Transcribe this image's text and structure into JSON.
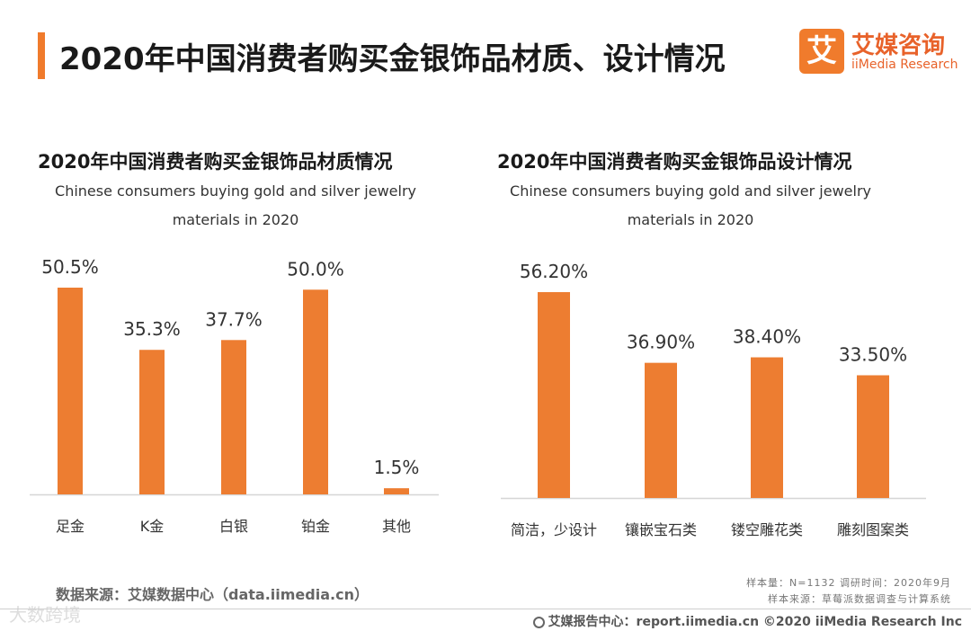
{
  "page": {
    "title": "2020年中国消费者购买金银饰品材质、设计情况"
  },
  "logo": {
    "mark": "艾",
    "name_cn": "艾媒咨询",
    "name_en": "iiMedia Research"
  },
  "chart_data": [
    {
      "type": "bar",
      "title": "2020年中国消费者购买金银饰品材质情况",
      "subtitle_line1": "Chinese consumers buying gold and silver jewelry",
      "subtitle_line2": "materials in 2020",
      "categories": [
        "足金",
        "K金",
        "白银",
        "铂金",
        "其他"
      ],
      "values": [
        50.5,
        35.3,
        37.7,
        50.0,
        1.5
      ],
      "value_labels": [
        "50.5%",
        "35.3%",
        "37.7%",
        "50.0%",
        "1.5%"
      ],
      "unit": "%",
      "ylim": [
        0,
        50.5
      ],
      "color": "#ed7d31"
    },
    {
      "type": "bar",
      "title": "2020年中国消费者购买金银饰品设计情况",
      "subtitle_line1": "Chinese consumers buying gold and silver jewelry",
      "subtitle_line2": "materials in 2020",
      "categories": [
        "简洁，少设计",
        "镶嵌宝石类",
        "镂空雕花类",
        "雕刻图案类"
      ],
      "values": [
        56.2,
        36.9,
        38.4,
        33.5
      ],
      "value_labels": [
        "56.20%",
        "36.90%",
        "38.40%",
        "33.50%"
      ],
      "unit": "%",
      "ylim": [
        0,
        56.2
      ],
      "color": "#ed7d31"
    }
  ],
  "source": "数据来源：艾媒数据中心（data.iimedia.cn）",
  "meta": {
    "line1": "样本量：N=1132    调研时间：2020年9月",
    "line2": "样本来源：草莓派数据调查与计算系统"
  },
  "footer": {
    "text": "艾媒报告中心：report.iimedia.cn   ©2020  iiMedia Research  Inc"
  },
  "watermark": "大数跨境"
}
